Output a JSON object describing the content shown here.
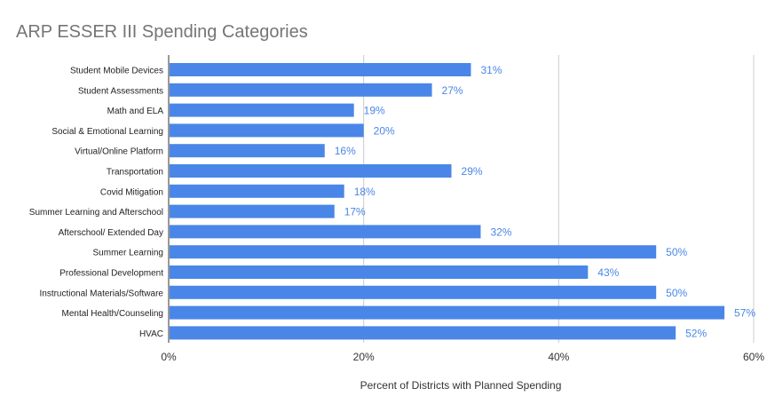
{
  "chart_data": {
    "type": "bar",
    "orientation": "horizontal",
    "title": "ARP ESSER III Spending Categories",
    "xlabel": "Percent of Districts with Planned Spending",
    "ylabel": "",
    "xlim": [
      0,
      60
    ],
    "x_ticks": [
      0,
      20,
      40,
      60
    ],
    "x_tick_labels": [
      "0%",
      "20%",
      "40%",
      "60%"
    ],
    "grid": true,
    "legend": "none",
    "bar_color": "#4a86e8",
    "label_color": "#4a86e8",
    "categories": [
      "Student Mobile Devices",
      "Student Assessments",
      "Math and ELA",
      "Social & Emotional Learning",
      "Virtual/Online Platform",
      "Transportation",
      "Covid Mitigation",
      "Summer Learning and Afterschool",
      "Afterschool/ Extended Day",
      "Summer Learning",
      "Professional Development",
      "Instructional Materials/Software",
      "Mental Health/Counseling",
      "HVAC"
    ],
    "values": [
      31,
      27,
      19,
      20,
      16,
      29,
      18,
      17,
      32,
      50,
      43,
      50,
      57,
      52
    ],
    "value_labels": [
      "31%",
      "27%",
      "19%",
      "20%",
      "16%",
      "29%",
      "18%",
      "17%",
      "32%",
      "50%",
      "43%",
      "50%",
      "57%",
      "52%"
    ]
  }
}
